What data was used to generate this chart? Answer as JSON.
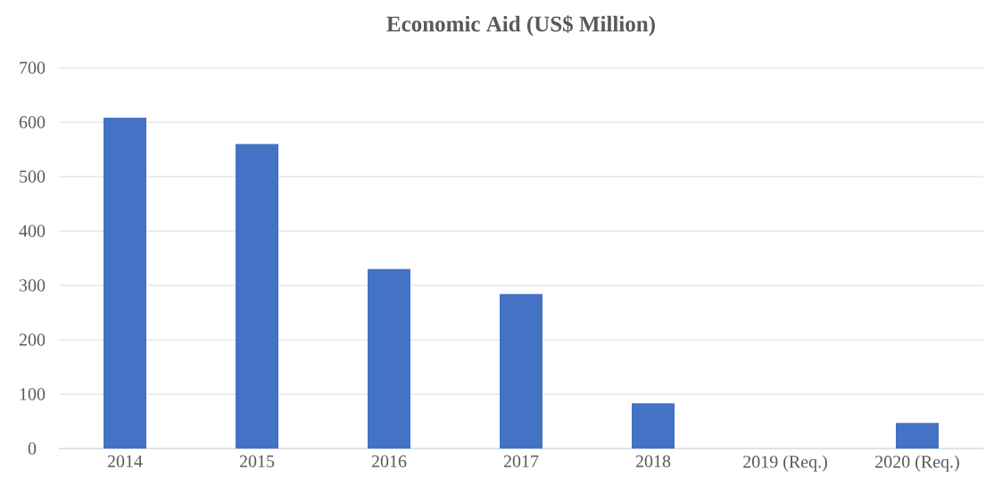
{
  "chart_data": {
    "type": "bar",
    "title": "Economic Aid (US$ Million)",
    "categories": [
      "2014",
      "2015",
      "2016",
      "2017",
      "2018",
      "2019 (Req.)",
      "2020 (Req.)"
    ],
    "values": [
      608,
      560,
      330,
      284,
      83,
      null,
      47
    ],
    "color": "#4472c4",
    "ylim": [
      0,
      700
    ],
    "yticks": [
      0,
      100,
      200,
      300,
      400,
      500,
      600,
      700
    ],
    "grid": "y"
  }
}
